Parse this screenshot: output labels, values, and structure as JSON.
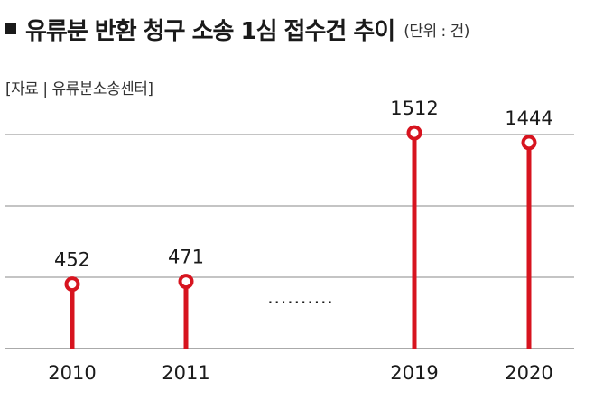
{
  "header": {
    "title": "유류분 반환 청구 소송 1심 접수건 추이",
    "unit": "(단위 : 건)",
    "source": "[자료 | 유류분소송센터]"
  },
  "colors": {
    "accent": "#d7141f",
    "grid": "#8a8a8a",
    "text": "#1a1a1a"
  },
  "chart_data": {
    "type": "bar",
    "title": "유류분 반환 청구 소송 1심 접수건 추이",
    "unit": "(단위 : 건)",
    "categories": [
      "2010",
      "2011",
      "2019",
      "2020"
    ],
    "values": [
      452,
      471,
      1512,
      1444
    ],
    "ylim": [
      0,
      2000
    ],
    "grid": true,
    "gap_marker": "··········"
  }
}
